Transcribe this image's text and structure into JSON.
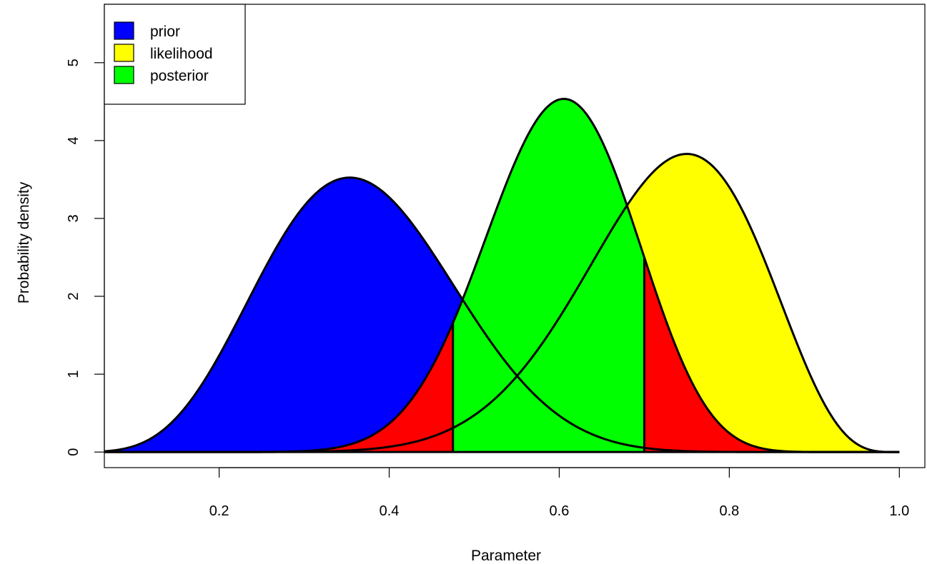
{
  "chart_data": {
    "type": "area",
    "title": "",
    "xlabel": "Parameter",
    "ylabel": "Probability density",
    "xlim": [
      0.065,
      1.03
    ],
    "ylim": [
      -0.2,
      5.75
    ],
    "x_ticks": [
      0.2,
      0.4,
      0.6,
      0.8,
      1.0
    ],
    "x_tick_labels": [
      "0.2",
      "0.4",
      "0.6",
      "0.8",
      "1.0"
    ],
    "y_ticks": [
      0,
      1,
      2,
      3,
      4,
      5
    ],
    "y_tick_labels": [
      "0",
      "1",
      "2",
      "3",
      "4",
      "5"
    ],
    "legend": {
      "position": "top-left",
      "entries": [
        {
          "label": "prior",
          "color": "#0000ff"
        },
        {
          "label": "likelihood",
          "color": "#ffff00"
        },
        {
          "label": "posterior",
          "color": "#00ff00"
        }
      ]
    },
    "series": [
      {
        "name": "prior",
        "distribution": "beta",
        "alpha": 6.8,
        "beta": 11.6,
        "color": "#0000ff"
      },
      {
        "name": "likelihood",
        "distribution": "beta",
        "alpha": 13,
        "beta": 5,
        "color": "#ffff00"
      },
      {
        "name": "posterior",
        "distribution": "beta",
        "alpha": 18.8,
        "beta": 12.6,
        "color": "#00ff00"
      }
    ],
    "credible_interval": {
      "lower": 0.475,
      "upper": 0.7,
      "fill": "#00ff00",
      "tail_fill": "#ff0000"
    }
  }
}
